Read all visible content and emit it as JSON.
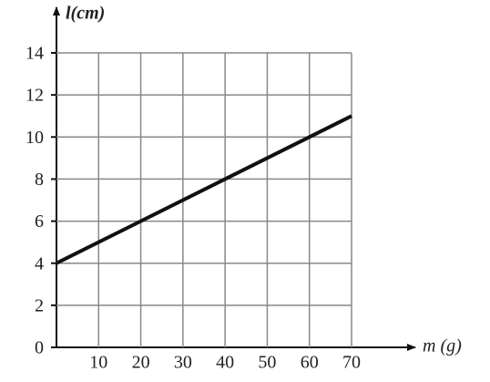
{
  "chart_data": {
    "type": "line",
    "y_label": "l(cm)",
    "x_label": "m (g)",
    "x": [
      0,
      70
    ],
    "series": [
      {
        "name": "l",
        "color": "#111111",
        "values": [
          4,
          11
        ]
      }
    ],
    "xlim": [
      0,
      70
    ],
    "ylim": [
      0,
      14
    ],
    "xticks": [
      10,
      20,
      30,
      40,
      50,
      60,
      70
    ],
    "yticks": [
      0,
      2,
      4,
      6,
      8,
      10,
      12,
      14
    ],
    "grid": true
  }
}
